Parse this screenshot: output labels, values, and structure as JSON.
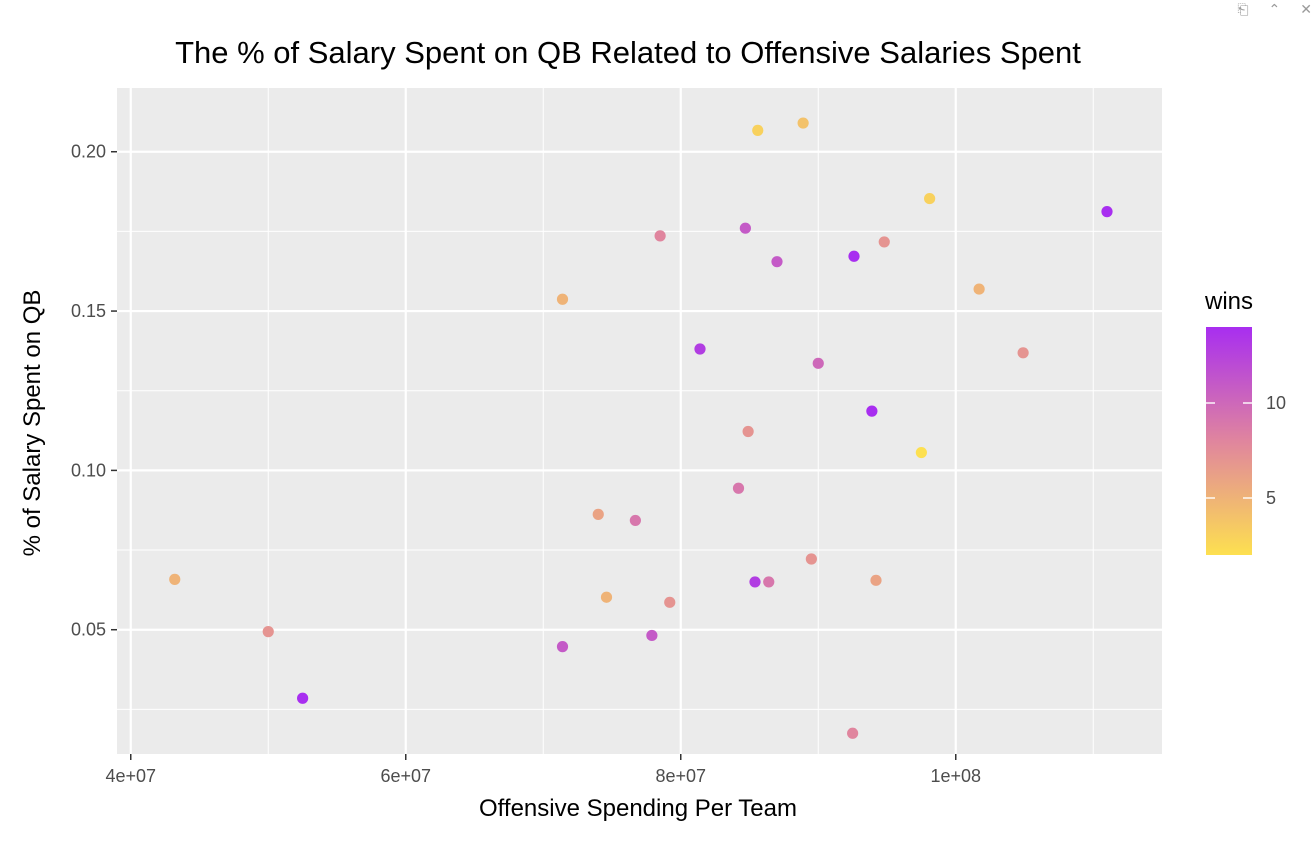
{
  "toolbar": {
    "export_icon": "export-icon",
    "collapse_icon": "collapse-icon",
    "close_icon": "close-icon"
  },
  "chart_data": {
    "type": "scatter",
    "title": "The % of Salary Spent on QB Related to Offensive Salaries Spent",
    "xlabel": "Offensive Spending Per Team",
    "ylabel": "% of Salary Spent on QB",
    "xlim": [
      39000000,
      115000000
    ],
    "ylim": [
      0.011,
      0.22
    ],
    "x_ticks": [
      40000000,
      60000000,
      80000000,
      100000000
    ],
    "x_tick_labels": [
      "4e+07",
      "6e+07",
      "8e+07",
      "1e+08"
    ],
    "y_ticks": [
      0.05,
      0.1,
      0.15,
      0.2
    ],
    "y_tick_labels": [
      "0.05",
      "0.10",
      "0.15",
      "0.20"
    ],
    "grid": true,
    "panel_background": "#ebebeb",
    "color_scale": {
      "title": "wins",
      "low_color": "#fde050",
      "mid_color": "#e0859e",
      "high_color": "#a82ef0",
      "min": 2,
      "max": 14,
      "breaks": [
        5,
        10
      ],
      "break_labels": [
        "5",
        "10"
      ],
      "position": "right"
    },
    "points": [
      {
        "x": 43200000,
        "y": 0.0658,
        "wins": 5
      },
      {
        "x": 50000000,
        "y": 0.0494,
        "wins": 7
      },
      {
        "x": 52500000,
        "y": 0.0285,
        "wins": 14
      },
      {
        "x": 71400000,
        "y": 0.1537,
        "wins": 5
      },
      {
        "x": 71400000,
        "y": 0.0447,
        "wins": 11
      },
      {
        "x": 74000000,
        "y": 0.0862,
        "wins": 6
      },
      {
        "x": 74600000,
        "y": 0.0602,
        "wins": 5
      },
      {
        "x": 76700000,
        "y": 0.0843,
        "wins": 9
      },
      {
        "x": 77900000,
        "y": 0.0482,
        "wins": 11
      },
      {
        "x": 78500000,
        "y": 0.1736,
        "wins": 8
      },
      {
        "x": 79200000,
        "y": 0.0586,
        "wins": 7
      },
      {
        "x": 81400000,
        "y": 0.1381,
        "wins": 13
      },
      {
        "x": 84200000,
        "y": 0.0944,
        "wins": 9
      },
      {
        "x": 84700000,
        "y": 0.176,
        "wins": 11
      },
      {
        "x": 84900000,
        "y": 0.1122,
        "wins": 7
      },
      {
        "x": 85400000,
        "y": 0.065,
        "wins": 13
      },
      {
        "x": 85600000,
        "y": 0.2067,
        "wins": 3
      },
      {
        "x": 86400000,
        "y": 0.065,
        "wins": 9
      },
      {
        "x": 87000000,
        "y": 0.1655,
        "wins": 11
      },
      {
        "x": 88900000,
        "y": 0.209,
        "wins": 4
      },
      {
        "x": 89500000,
        "y": 0.0722,
        "wins": 7
      },
      {
        "x": 90000000,
        "y": 0.1336,
        "wins": 10
      },
      {
        "x": 92500000,
        "y": 0.0175,
        "wins": 8
      },
      {
        "x": 92600000,
        "y": 0.1672,
        "wins": 14
      },
      {
        "x": 94200000,
        "y": 0.0655,
        "wins": 6
      },
      {
        "x": 94800000,
        "y": 0.1717,
        "wins": 7
      },
      {
        "x": 93900000,
        "y": 0.1186,
        "wins": 14
      },
      {
        "x": 97500000,
        "y": 0.1056,
        "wins": 2
      },
      {
        "x": 98100000,
        "y": 0.1853,
        "wins": 3
      },
      {
        "x": 101700000,
        "y": 0.1569,
        "wins": 5
      },
      {
        "x": 104900000,
        "y": 0.1369,
        "wins": 7
      },
      {
        "x": 111000000,
        "y": 0.1812,
        "wins": 14
      }
    ]
  }
}
